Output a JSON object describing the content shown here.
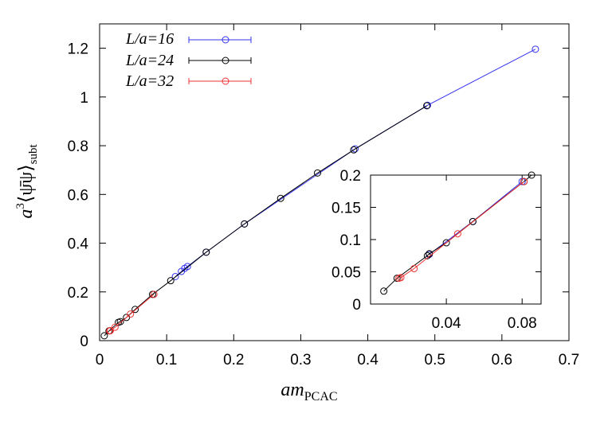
{
  "chart_data": [
    {
      "type": "line",
      "panel": "main",
      "xlabel": "am_PCAC",
      "xlabel_parts": {
        "base": "am",
        "sub": "PCAC"
      },
      "ylabel": "a^3<psibar psi>_subt",
      "ylabel_parts": {
        "prefix": "a",
        "sup": "3",
        "body": "⟨ψ̄ψ⟩",
        "sub": "subt"
      },
      "xlim": [
        0,
        0.7
      ],
      "ylim": [
        0,
        1.3
      ],
      "xticks": [
        "0",
        "0.1",
        "0.2",
        "0.3",
        "0.4",
        "0.5",
        "0.6",
        "0.7"
      ],
      "yticks": [
        "0",
        "0.2",
        "0.4",
        "0.6",
        "0.8",
        "1",
        "1.2"
      ],
      "legend_position": "top-left",
      "series": [
        {
          "name": "L/a=16",
          "color": "#3333ee",
          "x": [
            0.113,
            0.122,
            0.127,
            0.131,
            0.159,
            0.216,
            0.381,
            0.489,
            0.65
          ],
          "y": [
            0.263,
            0.284,
            0.297,
            0.304,
            0.363,
            0.479,
            0.787,
            0.966,
            1.196
          ]
        },
        {
          "name": "L/a=24",
          "color": "#000000",
          "x": [
            0.007,
            0.014,
            0.028,
            0.031,
            0.04,
            0.053,
            0.079,
            0.106,
            0.159,
            0.216,
            0.27,
            0.325,
            0.379,
            0.488
          ],
          "y": [
            0.02,
            0.04,
            0.075,
            0.078,
            0.095,
            0.128,
            0.19,
            0.246,
            0.363,
            0.479,
            0.584,
            0.688,
            0.783,
            0.964
          ]
        },
        {
          "name": "L/a=32",
          "color": "#ee3333",
          "x": [
            0.015,
            0.016,
            0.023,
            0.046,
            0.081
          ],
          "y": [
            0.04,
            0.041,
            0.055,
            0.109,
            0.19
          ]
        }
      ]
    },
    {
      "type": "line",
      "panel": "inset",
      "xlim": [
        0,
        0.09
      ],
      "ylim": [
        0,
        0.2
      ],
      "xticks": [
        "0.04",
        "0.08"
      ],
      "yticks": [
        "0",
        "0.05",
        "0.1",
        "0.15",
        "0.2"
      ],
      "series": [
        {
          "name": "L/a=16",
          "color": "#3333ee",
          "x": [
            0.031,
            0.054,
            0.08
          ],
          "y": [
            0.077,
            0.128,
            0.19
          ]
        },
        {
          "name": "L/a=24",
          "color": "#000000",
          "x": [
            0.007,
            0.014,
            0.03,
            0.031,
            0.04,
            0.054,
            0.081,
            0.085
          ],
          "y": [
            0.02,
            0.04,
            0.075,
            0.078,
            0.095,
            0.128,
            0.19,
            0.2
          ]
        },
        {
          "name": "L/a=32",
          "color": "#ee3333",
          "x": [
            0.015,
            0.016,
            0.023,
            0.046,
            0.081
          ],
          "y": [
            0.04,
            0.041,
            0.055,
            0.109,
            0.19
          ]
        }
      ]
    }
  ]
}
